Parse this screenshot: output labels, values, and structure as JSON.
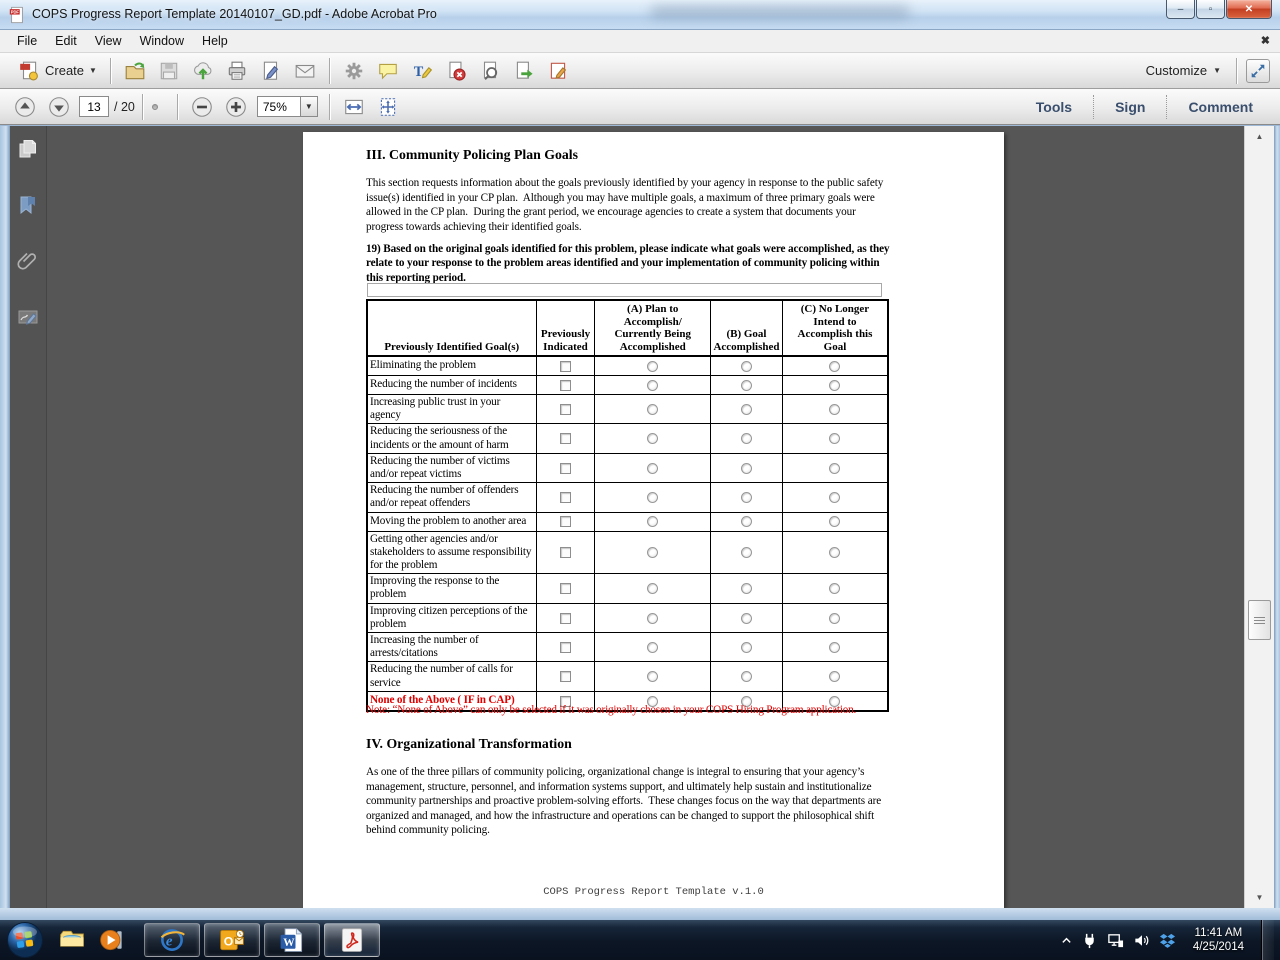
{
  "titlebar": {
    "title": "COPS Progress Report Template 20140107_GD.pdf - Adobe Acrobat Pro",
    "controls": {
      "minimize": "–",
      "maximize": "▫",
      "close": "✕"
    }
  },
  "menubar": {
    "items": [
      "File",
      "Edit",
      "View",
      "Window",
      "Help"
    ],
    "close_button": "✖"
  },
  "toolbar": {
    "create_label": "Create",
    "customize_label": "Customize",
    "group1_icons": [
      "open-file-icon",
      "save-icon",
      "upload-cloud-icon",
      "print-icon",
      "sign-page-icon",
      "email-icon"
    ],
    "group2_icons": [
      "gear-icon",
      "comment-bubble-icon",
      "highlight-text-icon",
      "delete-page-icon",
      "page-search-icon",
      "export-page-icon",
      "form-edit-icon"
    ]
  },
  "navbar": {
    "page_current": "13",
    "page_total_label": "/ 20",
    "zoom_value": "75%",
    "left_icons": [
      "page-up-icon",
      "page-down-icon"
    ],
    "select_tool": "select-tool-icon",
    "hand_tool": "hand-tool-icon",
    "zoom_out": "zoom-out-icon",
    "zoom_in": "zoom-in-icon",
    "fit_icons": [
      "fit-width-icon",
      "fit-page-icon"
    ],
    "tabs": [
      "Tools",
      "Sign",
      "Comment"
    ]
  },
  "sidebar": {
    "icons": [
      "page-thumbnails-icon",
      "bookmarks-icon",
      "attachments-icon",
      "signatures-icon"
    ]
  },
  "document": {
    "section3_title": "III. Community Policing Plan Goals",
    "section3_intro": "This section requests information about the goals previously identified by your agency in response to the public safety issue(s) identified in your CP plan.  Although you may have multiple goals, a maximum of three primary goals were allowed in the CP plan.  During the grant period, we encourage agencies to create a system that documents your progress towards achieving their identified goals.",
    "question19": "19) Based on the original goals identified for this problem, please indicate what goals were accomplished, as they relate to your response to the problem areas identified and your implementation of community policing within this reporting period.",
    "goal_input_value": "",
    "table": {
      "headers": [
        "Previously Identified Goal(s)",
        "Previously\nIndicated",
        "(A) Plan to\nAccomplish/\nCurrently Being\nAccomplished",
        "(B) Goal\nAccomplished",
        "(C) No Longer\nIntend to\nAccomplish this\nGoal"
      ],
      "rows": [
        {
          "label": "Eliminating the problem",
          "red": false
        },
        {
          "label": "Reducing the number of incidents",
          "red": false
        },
        {
          "label": "Increasing public trust in your agency",
          "red": false
        },
        {
          "label": "Reducing the seriousness of the incidents or the amount of harm",
          "red": false
        },
        {
          "label": "Reducing the number of victims and/or repeat victims",
          "red": false
        },
        {
          "label": "Reducing the number of offenders and/or repeat offenders",
          "red": false
        },
        {
          "label": "Moving the problem to another area",
          "red": false
        },
        {
          "label": "Getting other agencies and/or stakeholders to assume responsibility for the problem",
          "red": false
        },
        {
          "label": "Improving the response to the problem",
          "red": false
        },
        {
          "label": "Improving citizen perceptions of the problem",
          "red": false
        },
        {
          "label": "Increasing the number of arrests/citations",
          "red": false
        },
        {
          "label": "Reducing the number of calls for service",
          "red": false
        },
        {
          "label": "None of the Above ( IF in CAP)",
          "red": true
        }
      ]
    },
    "note": "Note: “None of Above” can only be selected if it was originally chosen in your COPS Hiring Program application.",
    "section4_title": "IV. Organizational Transformation",
    "section4_intro": "As one of the three pillars of community policing, organizational change is integral to ensuring that your agency’s management, structure, personnel, and information systems support, and ultimately help sustain and institutionalize community partnerships and proactive problem-solving efforts.  These changes focus on the way that departments are organized and managed, and how the infrastructure and operations can be changed to support the philosophical shift behind community policing.",
    "footer": "COPS Progress Report Template v.1.0"
  },
  "taskbar": {
    "start": "start-orb-icon",
    "pinned_icons": [
      "explorer-icon",
      "media-player-icon"
    ],
    "open_apps": [
      "internet-explorer-icon",
      "outlook-icon",
      "word-icon",
      "acrobat-icon"
    ],
    "tray_icons": [
      "power-plug-icon",
      "network-icon",
      "volume-icon",
      "dropbox-icon"
    ],
    "hidden_icons_caret": "hidden-icons-caret",
    "time": "11:41 AM",
    "date": "4/25/2014"
  },
  "colors": {
    "warning_red": "#e00000",
    "tab_text_blue": "#3a4f6d",
    "workspace_gray": "#565656"
  }
}
